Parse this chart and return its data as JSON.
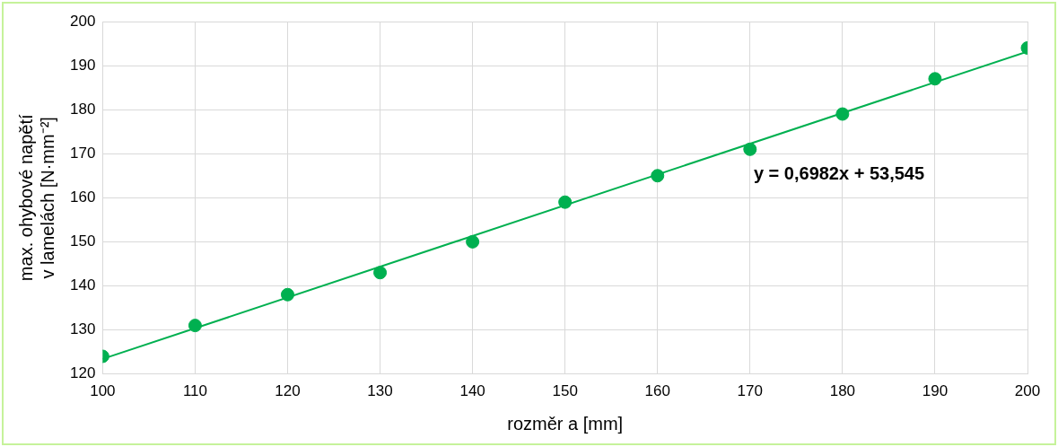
{
  "chart_data": {
    "type": "scatter",
    "xlabel": "rozměr a [mm]",
    "ylabel": "max. ohybové napětí\nv lamelách [N·mm⁻²]",
    "x": [
      100,
      110,
      120,
      130,
      140,
      150,
      160,
      170,
      180,
      190,
      200
    ],
    "series": [
      {
        "color": "#00b050",
        "values": [
          124,
          131,
          138,
          143,
          150,
          159,
          165,
          171,
          179,
          187,
          194
        ]
      },
      {
        "type": "line",
        "color": "#00b050",
        "x": [
          100,
          200
        ],
        "values": [
          123.4,
          193.2
        ],
        "marker": "none"
      }
    ],
    "xlim": [
      100,
      200
    ],
    "xticks": [
      100,
      110,
      120,
      130,
      140,
      150,
      160,
      170,
      180,
      190,
      200
    ],
    "ylim": [
      120,
      200
    ],
    "yticks": [
      120,
      130,
      140,
      150,
      160,
      170,
      180,
      190,
      200
    ],
    "grid": true,
    "marker": "circle",
    "annotations": [
      "y = 0,6982x + 53,545"
    ]
  }
}
